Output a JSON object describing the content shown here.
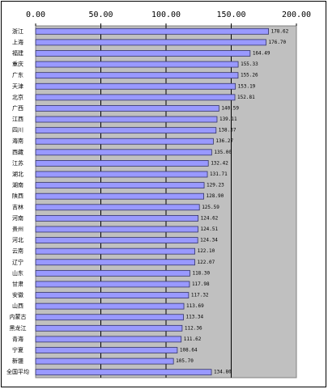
{
  "chart_data": {
    "type": "bar",
    "orientation": "horizontal",
    "categories": [
      "浙江",
      "上海",
      "福建",
      "重庆",
      "广东",
      "天津",
      "北京",
      "广西",
      "江西",
      "四川",
      "海南",
      "西藏",
      "江苏",
      "湖北",
      "湖南",
      "陕西",
      "吉林",
      "河南",
      "贵州",
      "河北",
      "云南",
      "辽宁",
      "山东",
      "甘肃",
      "安徽",
      "山西",
      "内蒙古",
      "黑龙江",
      "青海",
      "宁夏",
      "新疆",
      "全国平均"
    ],
    "values": [
      178.62,
      176.7,
      164.49,
      155.33,
      155.26,
      153.19,
      152.81,
      140.59,
      139.11,
      138.37,
      136.27,
      135.0,
      132.42,
      131.71,
      129.23,
      128.9,
      125.59,
      124.62,
      124.51,
      124.34,
      122.1,
      122.07,
      118.3,
      117.98,
      117.32,
      113.69,
      113.34,
      112.36,
      111.62,
      108.64,
      105.7,
      134.8
    ],
    "value_labels": [
      "178.62",
      "176.70",
      "164.49",
      "155.33",
      "155.26",
      "153.19",
      "152.81",
      "140.59",
      "139.11",
      "138.37",
      "136.27",
      "135.00",
      "132.42",
      "131.71",
      "129.23",
      "128.90",
      "125.59",
      "124.62",
      "124.51",
      "124.34",
      "122.10",
      "122.07",
      "118.30",
      "117.98",
      "117.32",
      "113.69",
      "113.34",
      "112.36",
      "111.62",
      "108.64",
      "105.70",
      "134.80"
    ],
    "color": "#9999ff",
    "xlim": [
      0,
      200
    ],
    "xticks": [
      {
        "value": 0,
        "label": "0.00"
      },
      {
        "value": 50,
        "label": "50.00"
      },
      {
        "value": 100,
        "label": "100.00"
      },
      {
        "value": 150,
        "label": "150.00"
      },
      {
        "value": 200,
        "label": "200.00"
      }
    ],
    "grid": true
  }
}
